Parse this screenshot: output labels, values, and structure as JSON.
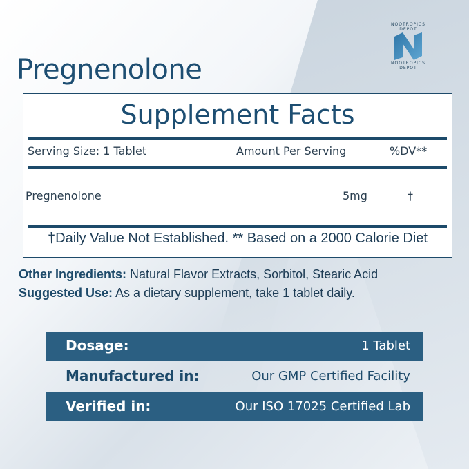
{
  "title": "Pregnenolone",
  "logo": {
    "brand": "NOOTROPICS DEPOT",
    "icon": "n-logo-icon"
  },
  "facts": {
    "heading": "Supplement Facts",
    "serving_size": "Serving Size: 1 Tablet",
    "amount_header": "Amount Per Serving",
    "dv_header": "%DV**",
    "rows": [
      {
        "name": "Pregnenolone",
        "amount": "5mg",
        "dv": "†"
      }
    ],
    "footnote": "†Daily Value Not Established. ** Based on a 2000 Calorie Diet"
  },
  "other_ingredients": {
    "label": "Other Ingredients:",
    "value": "Natural Flavor Extracts, Sorbitol, Stearic Acid"
  },
  "suggested_use": {
    "label": "Suggested Use:",
    "value": "As a dietary supplement, take 1 tablet daily."
  },
  "specs": [
    {
      "label": "Dosage:",
      "value": "1 Tablet"
    },
    {
      "label": "Manufactured in:",
      "value": "Our GMP Certified Facility"
    },
    {
      "label": "Verified in:",
      "value": "Our ISO 17025 Certified Lab"
    }
  ],
  "colors": {
    "primary": "#1d4a6a",
    "band": "#2b5f82"
  }
}
